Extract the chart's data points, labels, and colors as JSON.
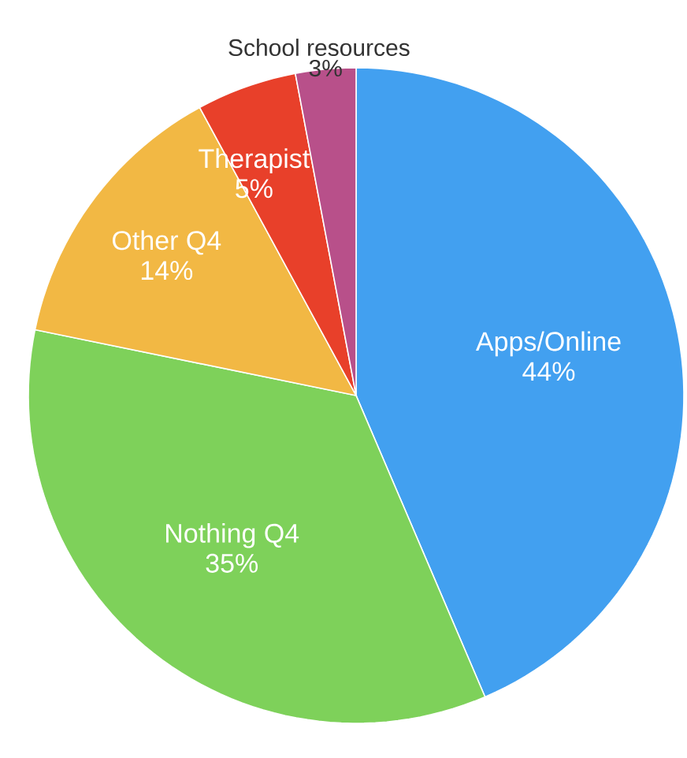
{
  "chart_data": {
    "type": "pie",
    "categories": [
      "Apps/Online",
      "Nothing Q4",
      "Other Q4",
      "Therapist",
      "School resources"
    ],
    "values": [
      44,
      35,
      14,
      5,
      3
    ],
    "value_labels": [
      "44%",
      "35%",
      "14%",
      "5%",
      "3%"
    ],
    "colors": [
      "#42a0f0",
      "#7ed15a",
      "#f2b844",
      "#e8402a",
      "#b8508a"
    ]
  }
}
